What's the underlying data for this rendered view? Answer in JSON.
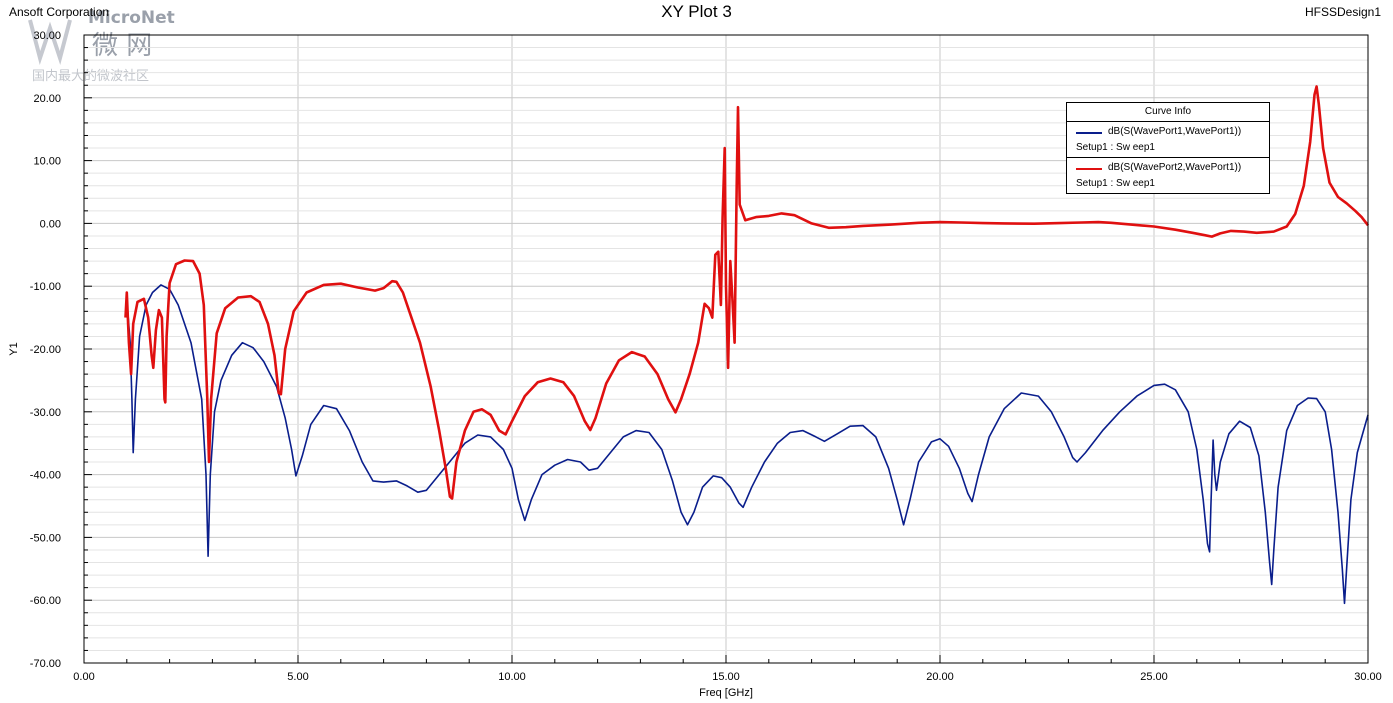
{
  "header": {
    "company": "Ansoft Corporation",
    "title": "XY Plot 3",
    "design": "HFSSDesign1"
  },
  "watermark": {
    "brand": "MicroNet",
    "cn_name": "微 网",
    "slogan": "国内最大的微波社区"
  },
  "legend": {
    "title": "Curve Info",
    "entries": [
      {
        "name": "dB(S(WavePort1,WavePort1))",
        "setup": "Setup1 : Sw eep1",
        "color": "#0a1e8c"
      },
      {
        "name": "dB(S(WavePort2,WavePort1))",
        "setup": "Setup1 : Sw eep1",
        "color": "#e01010"
      }
    ]
  },
  "chart_data": {
    "type": "line",
    "title": "XY Plot 3",
    "xlabel": "Freq [GHz]",
    "ylabel": "Y1",
    "xlim": [
      0,
      30
    ],
    "ylim": [
      -70,
      30
    ],
    "x_major_step": 5,
    "x_minor_step": 1,
    "y_major_step": 10,
    "y_minor_step": 2,
    "x_tick_labels": [
      "0.00",
      "5.00",
      "10.00",
      "15.00",
      "20.00",
      "25.00",
      "30.00"
    ],
    "y_tick_labels": [
      "30.00",
      "20.00",
      "10.00",
      "0.00",
      "-10.00",
      "-20.00",
      "-30.00",
      "-40.00",
      "-50.00",
      "-60.00",
      "-70.00"
    ],
    "grid": true,
    "legend_position": "top-right",
    "series": [
      {
        "name": "dB(S(WavePort1,WavePort1))",
        "color": "#0a1e8c",
        "points": [
          [
            1.0,
            -12
          ],
          [
            1.08,
            -19
          ],
          [
            1.12,
            -28
          ],
          [
            1.15,
            -36.5
          ],
          [
            1.2,
            -28
          ],
          [
            1.3,
            -18
          ],
          [
            1.45,
            -13
          ],
          [
            1.6,
            -11
          ],
          [
            1.8,
            -9.8
          ],
          [
            2.0,
            -10.5
          ],
          [
            2.2,
            -13
          ],
          [
            2.5,
            -19
          ],
          [
            2.75,
            -28
          ],
          [
            2.85,
            -40
          ],
          [
            2.9,
            -53
          ],
          [
            2.95,
            -40
          ],
          [
            3.05,
            -30
          ],
          [
            3.2,
            -25
          ],
          [
            3.45,
            -21
          ],
          [
            3.7,
            -19
          ],
          [
            3.95,
            -19.8
          ],
          [
            4.2,
            -22
          ],
          [
            4.5,
            -26
          ],
          [
            4.7,
            -31
          ],
          [
            4.85,
            -36
          ],
          [
            4.95,
            -40.2
          ],
          [
            5.1,
            -37
          ],
          [
            5.3,
            -32
          ],
          [
            5.6,
            -29
          ],
          [
            5.9,
            -29.5
          ],
          [
            6.2,
            -33
          ],
          [
            6.5,
            -38
          ],
          [
            6.75,
            -41
          ],
          [
            7.0,
            -41.2
          ],
          [
            7.3,
            -41
          ],
          [
            7.55,
            -41.8
          ],
          [
            7.8,
            -42.8
          ],
          [
            8.0,
            -42.5
          ],
          [
            8.3,
            -40
          ],
          [
            8.6,
            -37.5
          ],
          [
            8.9,
            -35
          ],
          [
            9.2,
            -33.7
          ],
          [
            9.5,
            -34
          ],
          [
            9.8,
            -36
          ],
          [
            10.0,
            -39
          ],
          [
            10.15,
            -44
          ],
          [
            10.3,
            -47.3
          ],
          [
            10.45,
            -44
          ],
          [
            10.7,
            -40
          ],
          [
            11.0,
            -38.5
          ],
          [
            11.3,
            -37.6
          ],
          [
            11.6,
            -38
          ],
          [
            11.8,
            -39.3
          ],
          [
            12.0,
            -39
          ],
          [
            12.3,
            -36.5
          ],
          [
            12.6,
            -34
          ],
          [
            12.9,
            -33
          ],
          [
            13.2,
            -33.3
          ],
          [
            13.5,
            -36
          ],
          [
            13.75,
            -41
          ],
          [
            13.95,
            -46
          ],
          [
            14.1,
            -48
          ],
          [
            14.25,
            -46
          ],
          [
            14.45,
            -42
          ],
          [
            14.7,
            -40.2
          ],
          [
            14.9,
            -40.5
          ],
          [
            15.1,
            -42
          ],
          [
            15.3,
            -44.5
          ],
          [
            15.4,
            -45.2
          ],
          [
            15.6,
            -42
          ],
          [
            15.9,
            -38
          ],
          [
            16.2,
            -35
          ],
          [
            16.5,
            -33.3
          ],
          [
            16.8,
            -33
          ],
          [
            17.1,
            -34
          ],
          [
            17.3,
            -34.7
          ],
          [
            17.6,
            -33.5
          ],
          [
            17.9,
            -32.3
          ],
          [
            18.2,
            -32.2
          ],
          [
            18.5,
            -34
          ],
          [
            18.8,
            -39
          ],
          [
            19.0,
            -44
          ],
          [
            19.15,
            -48
          ],
          [
            19.3,
            -44
          ],
          [
            19.5,
            -38
          ],
          [
            19.8,
            -34.8
          ],
          [
            20.0,
            -34.3
          ],
          [
            20.2,
            -35.5
          ],
          [
            20.45,
            -39
          ],
          [
            20.65,
            -43
          ],
          [
            20.75,
            -44.3
          ],
          [
            20.9,
            -40
          ],
          [
            21.15,
            -34
          ],
          [
            21.5,
            -29.5
          ],
          [
            21.9,
            -27
          ],
          [
            22.3,
            -27.5
          ],
          [
            22.6,
            -30
          ],
          [
            22.9,
            -34
          ],
          [
            23.1,
            -37.3
          ],
          [
            23.2,
            -38
          ],
          [
            23.4,
            -36.5
          ],
          [
            23.8,
            -33
          ],
          [
            24.2,
            -30
          ],
          [
            24.6,
            -27.5
          ],
          [
            25.0,
            -25.8
          ],
          [
            25.25,
            -25.6
          ],
          [
            25.5,
            -26.5
          ],
          [
            25.8,
            -30
          ],
          [
            26.0,
            -36
          ],
          [
            26.15,
            -44
          ],
          [
            26.25,
            -51
          ],
          [
            26.3,
            -52.3
          ],
          [
            26.33,
            -45
          ],
          [
            26.38,
            -34.5
          ],
          [
            26.42,
            -40
          ],
          [
            26.46,
            -42.5
          ],
          [
            26.55,
            -38
          ],
          [
            26.75,
            -33.5
          ],
          [
            27.0,
            -31.5
          ],
          [
            27.25,
            -32.5
          ],
          [
            27.45,
            -37
          ],
          [
            27.6,
            -46
          ],
          [
            27.7,
            -54
          ],
          [
            27.75,
            -57.5
          ],
          [
            27.8,
            -52
          ],
          [
            27.9,
            -42
          ],
          [
            28.1,
            -33
          ],
          [
            28.35,
            -29
          ],
          [
            28.6,
            -27.8
          ],
          [
            28.8,
            -27.9
          ],
          [
            29.0,
            -30
          ],
          [
            29.15,
            -36
          ],
          [
            29.3,
            -46
          ],
          [
            29.4,
            -55
          ],
          [
            29.45,
            -60.5
          ],
          [
            29.5,
            -55
          ],
          [
            29.6,
            -44
          ],
          [
            29.75,
            -36.5
          ],
          [
            30.0,
            -30.5
          ]
        ]
      },
      {
        "name": "dB(S(WavePort2,WavePort1))",
        "color": "#e01010",
        "points": [
          [
            0.97,
            -15
          ],
          [
            1.0,
            -11
          ],
          [
            1.05,
            -19
          ],
          [
            1.1,
            -24
          ],
          [
            1.15,
            -16
          ],
          [
            1.25,
            -12.5
          ],
          [
            1.4,
            -12
          ],
          [
            1.5,
            -15
          ],
          [
            1.58,
            -21
          ],
          [
            1.62,
            -23
          ],
          [
            1.68,
            -17
          ],
          [
            1.75,
            -13.8
          ],
          [
            1.82,
            -15
          ],
          [
            1.88,
            -28
          ],
          [
            1.9,
            -28.5
          ],
          [
            1.93,
            -18
          ],
          [
            2.0,
            -9.5
          ],
          [
            2.15,
            -6.5
          ],
          [
            2.35,
            -5.9
          ],
          [
            2.55,
            -6
          ],
          [
            2.7,
            -8
          ],
          [
            2.8,
            -13
          ],
          [
            2.88,
            -28
          ],
          [
            2.92,
            -38
          ],
          [
            2.97,
            -28
          ],
          [
            3.1,
            -17.5
          ],
          [
            3.3,
            -13.5
          ],
          [
            3.6,
            -11.8
          ],
          [
            3.9,
            -11.6
          ],
          [
            4.1,
            -12.5
          ],
          [
            4.3,
            -16
          ],
          [
            4.45,
            -21
          ],
          [
            4.55,
            -27
          ],
          [
            4.6,
            -27.2
          ],
          [
            4.7,
            -20
          ],
          [
            4.9,
            -14
          ],
          [
            5.2,
            -11
          ],
          [
            5.6,
            -9.8
          ],
          [
            6.0,
            -9.6
          ],
          [
            6.4,
            -10.2
          ],
          [
            6.8,
            -10.7
          ],
          [
            7.0,
            -10.3
          ],
          [
            7.2,
            -9.2
          ],
          [
            7.3,
            -9.3
          ],
          [
            7.45,
            -11
          ],
          [
            7.6,
            -14
          ],
          [
            7.85,
            -19
          ],
          [
            8.1,
            -26
          ],
          [
            8.3,
            -33
          ],
          [
            8.45,
            -39
          ],
          [
            8.55,
            -43.5
          ],
          [
            8.6,
            -43.8
          ],
          [
            8.7,
            -38
          ],
          [
            8.9,
            -33
          ],
          [
            9.1,
            -30
          ],
          [
            9.3,
            -29.6
          ],
          [
            9.5,
            -30.5
          ],
          [
            9.7,
            -33
          ],
          [
            9.85,
            -33.6
          ],
          [
            10.0,
            -31.5
          ],
          [
            10.3,
            -27.5
          ],
          [
            10.6,
            -25.3
          ],
          [
            10.9,
            -24.7
          ],
          [
            11.2,
            -25.3
          ],
          [
            11.45,
            -27.5
          ],
          [
            11.7,
            -31.5
          ],
          [
            11.83,
            -32.9
          ],
          [
            11.95,
            -31
          ],
          [
            12.2,
            -25.5
          ],
          [
            12.5,
            -21.8
          ],
          [
            12.8,
            -20.5
          ],
          [
            13.1,
            -21.2
          ],
          [
            13.4,
            -24
          ],
          [
            13.65,
            -28
          ],
          [
            13.82,
            -30.1
          ],
          [
            13.95,
            -28
          ],
          [
            14.15,
            -24
          ],
          [
            14.35,
            -19
          ],
          [
            14.5,
            -12.8
          ],
          [
            14.6,
            -13.5
          ],
          [
            14.68,
            -15
          ],
          [
            14.75,
            -5
          ],
          [
            14.82,
            -4.5
          ],
          [
            14.88,
            -13
          ],
          [
            14.92,
            1
          ],
          [
            14.97,
            12
          ],
          [
            15.0,
            -10
          ],
          [
            15.05,
            -23
          ],
          [
            15.1,
            -6
          ],
          [
            15.15,
            -12
          ],
          [
            15.2,
            -19
          ],
          [
            15.25,
            6
          ],
          [
            15.28,
            18.5
          ],
          [
            15.32,
            3
          ],
          [
            15.45,
            0.5
          ],
          [
            15.7,
            1
          ],
          [
            16.0,
            1.2
          ],
          [
            16.3,
            1.6
          ],
          [
            16.6,
            1.3
          ],
          [
            17.0,
            0
          ],
          [
            17.4,
            -0.7
          ],
          [
            17.8,
            -0.6
          ],
          [
            18.2,
            -0.4
          ],
          [
            18.8,
            -0.2
          ],
          [
            19.5,
            0.1
          ],
          [
            20.0,
            0.2
          ],
          [
            20.5,
            0.15
          ],
          [
            21.0,
            0.05
          ],
          [
            21.5,
            0
          ],
          [
            22.2,
            -0.05
          ],
          [
            22.8,
            0.05
          ],
          [
            23.3,
            0.15
          ],
          [
            23.7,
            0.2
          ],
          [
            24.0,
            0.1
          ],
          [
            24.5,
            -0.2
          ],
          [
            25.0,
            -0.5
          ],
          [
            25.5,
            -1
          ],
          [
            25.9,
            -1.5
          ],
          [
            26.2,
            -1.9
          ],
          [
            26.35,
            -2.1
          ],
          [
            26.55,
            -1.6
          ],
          [
            26.8,
            -1.2
          ],
          [
            27.1,
            -1.3
          ],
          [
            27.4,
            -1.5
          ],
          [
            27.8,
            -1.3
          ],
          [
            28.1,
            -0.5
          ],
          [
            28.3,
            1.5
          ],
          [
            28.5,
            6
          ],
          [
            28.65,
            13
          ],
          [
            28.75,
            20.5
          ],
          [
            28.8,
            21.8
          ],
          [
            28.85,
            19
          ],
          [
            28.95,
            12
          ],
          [
            29.1,
            6.5
          ],
          [
            29.3,
            4.2
          ],
          [
            29.5,
            3.2
          ],
          [
            29.7,
            2
          ],
          [
            29.85,
            1
          ],
          [
            30.0,
            -0.3
          ]
        ]
      }
    ]
  }
}
